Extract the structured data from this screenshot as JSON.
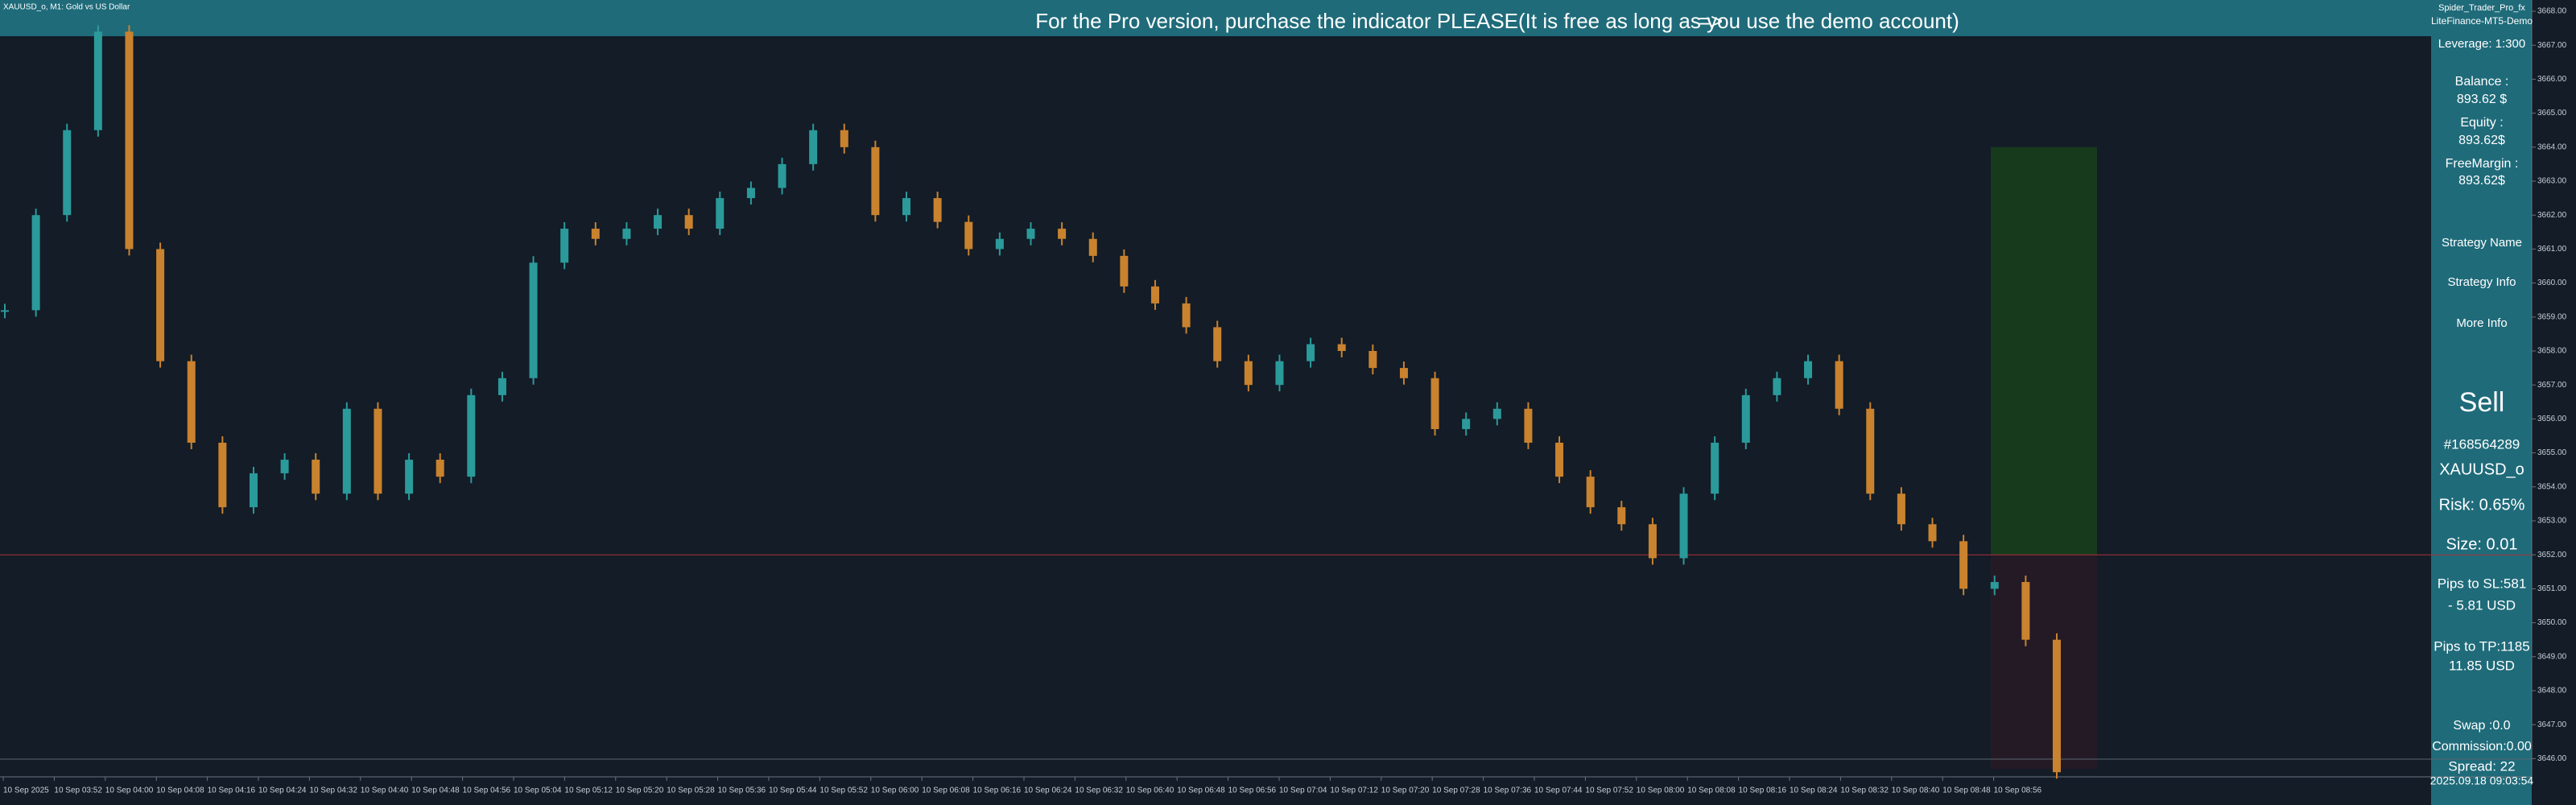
{
  "window": {
    "symbol": "XAUUSD_o, M1:  Gold vs US Dollar"
  },
  "banner": {
    "text": "For the Pro version, purchase the indicator PLEASE(It is free as long as you use the demo account)",
    "arrow": "=>"
  },
  "panel": [
    "Spider_Trader_Pro_fx",
    "LiteFinance-MT5-Demo",
    "Leverage: 1:300",
    "Balance :",
    "893.62 $",
    "Equity :",
    "893.62$",
    "FreeMargin :",
    "893.62$",
    "Strategy Name",
    "Strategy Info",
    "More Info",
    "Sell",
    "#168564289",
    "XAUUSD_o",
    "Risk: 0.65%",
    "Size: 0.01",
    "Pips to SL:581",
    "- 5.81 USD",
    "Pips to TP:1185",
    "11.85 USD",
    "Swap :0.0",
    "Commission:0.00",
    "Spread: 22",
    "2025.09.18 09:03:54"
  ],
  "chart": {
    "type": "candlestick",
    "closes": [
      3659.2,
      3662,
      3664.5,
      3667.4,
      3661,
      3657.7,
      3655.3,
      3653.4,
      3654.4,
      3654.8,
      3653.8,
      3656.3,
      3653.8,
      3654.8,
      3654.3,
      3656.7,
      3657.2,
      3660.6,
      3661.6,
      3661.3,
      3661.6,
      3662,
      3661.6,
      3662.5,
      3662.8,
      3663.5,
      3664.5,
      3664,
      3662,
      3662.5,
      3661.8,
      3661,
      3661.3,
      3661.6,
      3661.3,
      3660.8,
      3659.9,
      3659.4,
      3658.7,
      3657.7,
      3657,
      3657.7,
      3658.2,
      3658,
      3657.5,
      3657.2,
      3655.7,
      3656,
      3656.3,
      3655.3,
      3654.3,
      3653.4,
      3652.9,
      3651.9,
      3653.8,
      3655.3,
      3656.7,
      3657.2,
      3657.7,
      3656.3,
      3653.8,
      3652.9,
      3652.4,
      3651,
      3651.2,
      3649.5,
      3645.6
    ],
    "up_color": "#2b9a9a",
    "down_color": "#c9822e",
    "ylim": [
      3645.5,
      3668.3
    ],
    "yticks": [
      {
        "value": 3668,
        "label": "3668.00"
      },
      {
        "value": 3667,
        "label": "3667.00"
      },
      {
        "value": 3666,
        "label": "3666.00"
      },
      {
        "value": 3665,
        "label": "3665.00"
      },
      {
        "value": 3664,
        "label": "3664.00"
      },
      {
        "value": 3663,
        "label": "3663.00"
      },
      {
        "value": 3662,
        "label": "3662.00"
      },
      {
        "value": 3661,
        "label": "3661.00"
      },
      {
        "value": 3660,
        "label": "3660.00"
      },
      {
        "value": 3659,
        "label": "3659.00"
      },
      {
        "value": 3658,
        "label": "3658.00"
      },
      {
        "value": 3657,
        "label": "3657.00"
      },
      {
        "value": 3656,
        "label": "3656.00"
      },
      {
        "value": 3655,
        "label": "3655.00"
      },
      {
        "value": 3654,
        "label": "3654.00"
      },
      {
        "value": 3653,
        "label": "3653.00"
      },
      {
        "value": 3652,
        "label": "3652.00"
      },
      {
        "value": 3651,
        "label": "3651.00"
      },
      {
        "value": 3650,
        "label": "3650.00"
      },
      {
        "value": 3649,
        "label": "3649.00"
      },
      {
        "value": 3648,
        "label": "3648.00"
      },
      {
        "value": 3647,
        "label": "3647.00"
      },
      {
        "value": 3646,
        "label": "3646.00"
      }
    ],
    "time_labels": [
      "10 Sep 2025",
      "10 Sep 03:52",
      "10 Sep 04:00",
      "10 Sep 04:08",
      "10 Sep 04:16",
      "10 Sep 04:24",
      "10 Sep 04:32",
      "10 Sep 04:40",
      "10 Sep 04:48",
      "10 Sep 04:56",
      "10 Sep 05:04",
      "10 Sep 05:12",
      "10 Sep 05:20",
      "10 Sep 05:28",
      "10 Sep 05:36",
      "10 Sep 05:44",
      "10 Sep 05:52",
      "10 Sep 06:00",
      "10 Sep 06:08",
      "10 Sep 06:16",
      "10 Sep 06:24",
      "10 Sep 06:32",
      "10 Sep 06:40",
      "10 Sep 06:48",
      "10 Sep 06:56",
      "10 Sep 07:04",
      "10 Sep 07:12",
      "10 Sep 07:20",
      "10 Sep 07:28",
      "10 Sep 07:36",
      "10 Sep 07:44",
      "10 Sep 07:52",
      "10 Sep 08:00",
      "10 Sep 08:08",
      "10 Sep 08:16",
      "10 Sep 08:24",
      "10 Sep 08:32",
      "10 Sep 08:40",
      "10 Sep 08:48",
      "10 Sep 08:56"
    ],
    "tp_price": 3664,
    "entry_price": 3652,
    "sl_price": 3645.7
  }
}
